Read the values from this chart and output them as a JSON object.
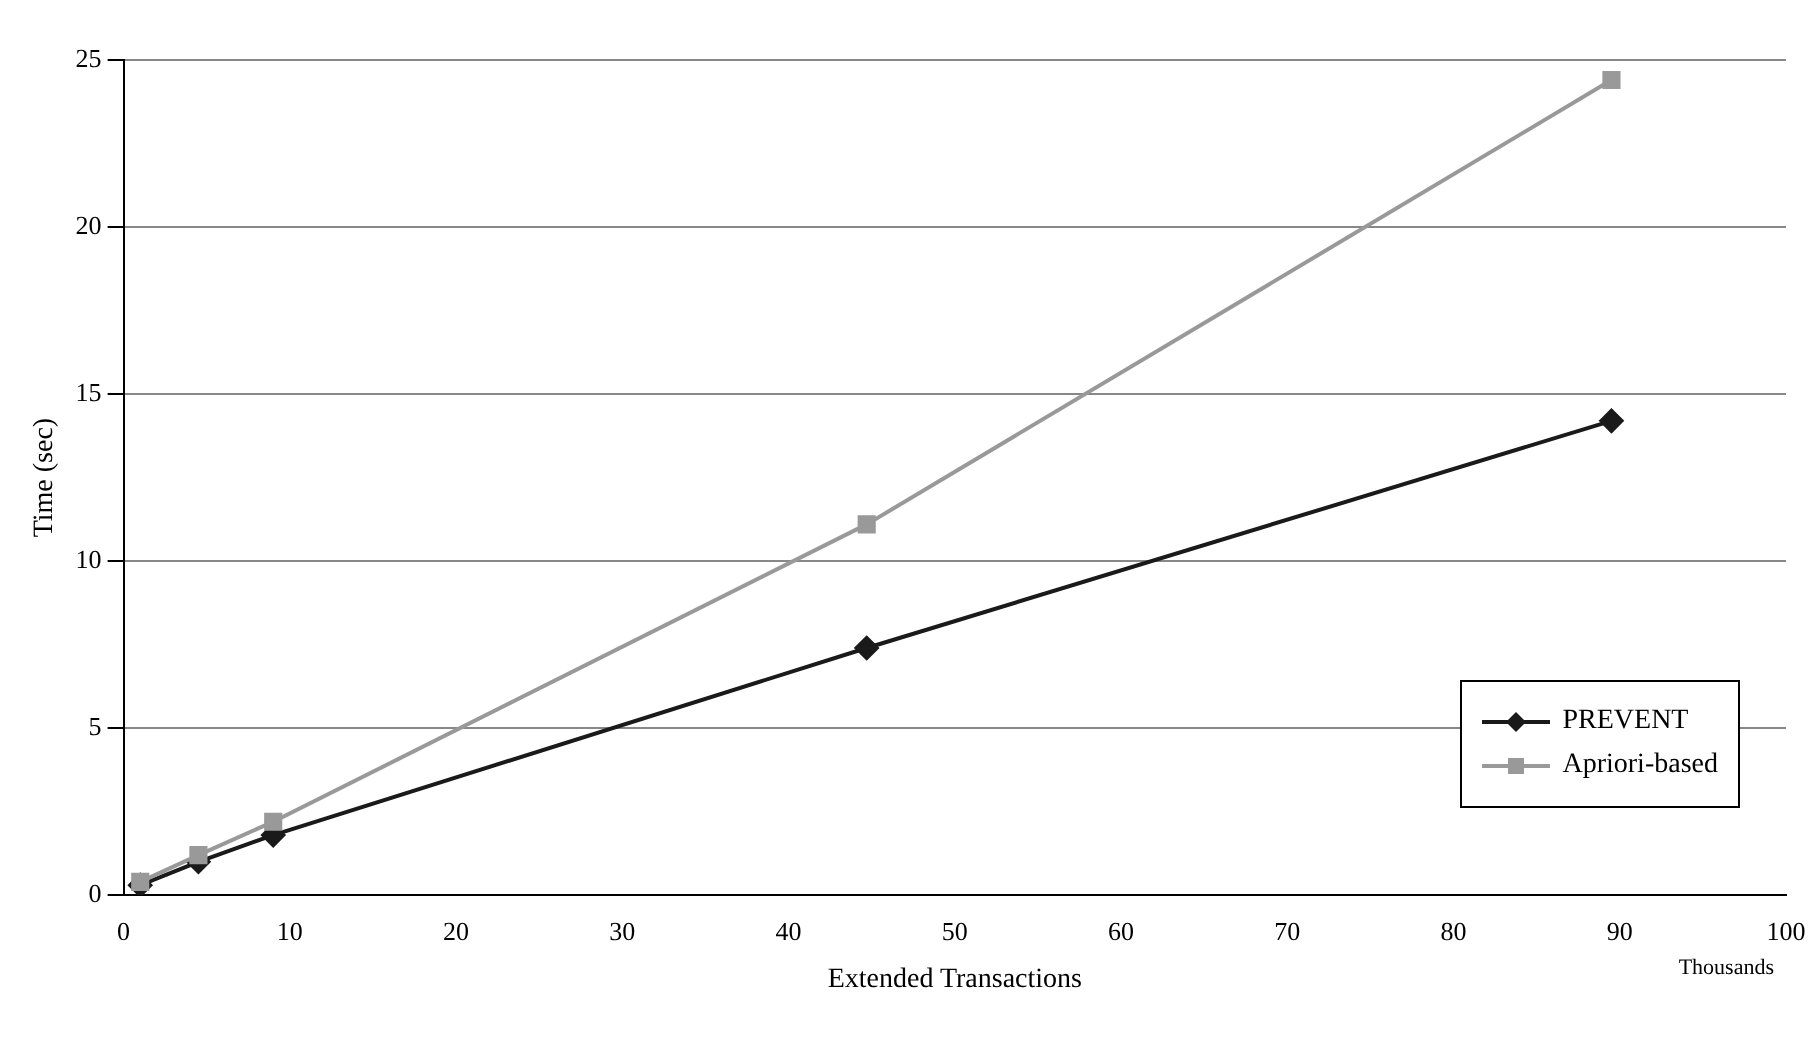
{
  "chart_data": {
    "type": "line",
    "xlabel": "Extended Transactions",
    "ylabel": "Time (sec)",
    "annotations": [
      "Thousands"
    ],
    "xlim": [
      0,
      100
    ],
    "xticks": [
      0,
      10,
      20,
      30,
      40,
      50,
      60,
      70,
      80,
      90,
      100
    ],
    "ylim": [
      0,
      25
    ],
    "yticks": [
      0,
      5,
      10,
      15,
      20,
      25
    ],
    "grid": "y",
    "legend": "bottom right",
    "line_style": "solid",
    "series": [
      {
        "name": "PREVENT",
        "color": "#1a1a1a",
        "marker": "diamond",
        "x": [
          1,
          4.5,
          9,
          44.7,
          89.5
        ],
        "values": [
          0.3,
          1.0,
          1.8,
          7.4,
          14.2
        ]
      },
      {
        "name": "Apriori-based",
        "color": "#999999",
        "marker": "square",
        "x": [
          1,
          4.5,
          9,
          44.7,
          89.5
        ],
        "values": [
          0.4,
          1.2,
          2.2,
          11.1,
          24.4
        ]
      }
    ]
  }
}
